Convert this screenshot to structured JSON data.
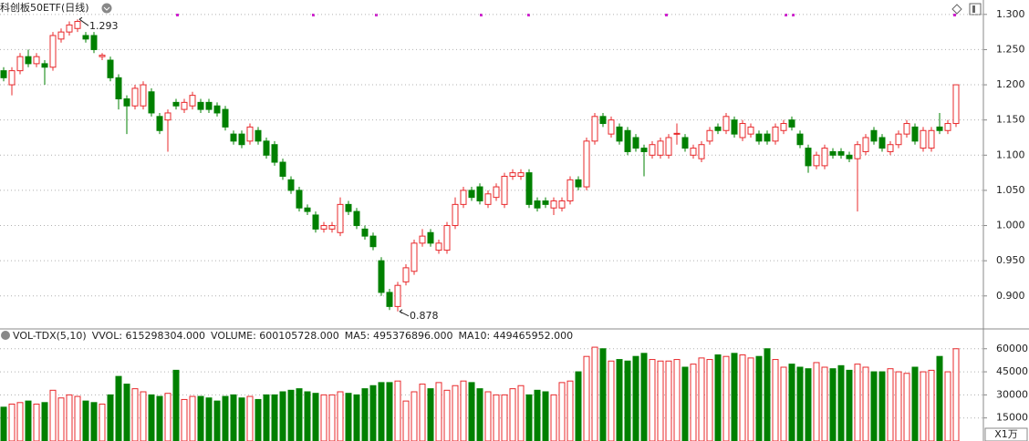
{
  "chart_data": [
    {
      "type": "candlestick",
      "title": "科创板50ETF(日线)",
      "open": [
        1.22,
        1.2,
        1.22,
        1.24,
        1.23,
        1.23,
        1.225,
        1.265,
        1.275,
        1.28,
        1.27,
        1.27,
        1.24,
        1.235,
        1.21,
        1.18,
        1.17,
        1.17,
        1.19,
        1.155,
        1.15,
        1.175,
        1.165,
        1.17,
        1.175,
        1.175,
        1.17,
        1.165,
        1.13,
        1.13,
        1.12,
        1.135,
        1.12,
        1.115,
        1.09,
        1.065,
        1.05,
        1.025,
        1.015,
        0.995,
        0.995,
        0.99,
        1.03,
        1.02,
        0.995,
        0.985,
        0.95,
        0.905,
        0.885,
        0.92,
        0.935,
        0.975,
        0.99,
        0.965,
        0.965,
        1.0,
        1.03,
        1.05,
        1.055,
        1.03,
        1.04,
        1.03,
        1.07,
        1.07,
        1.075,
        1.035,
        1.035,
        1.025,
        1.025,
        1.035,
        1.065,
        1.055,
        1.12,
        1.155,
        1.13,
        1.14,
        1.135,
        1.125,
        1.11,
        1.1,
        1.1,
        1.1,
        1.13,
        1.125,
        1.1,
        1.095,
        1.12,
        1.14,
        1.135,
        1.15,
        1.125,
        1.13,
        1.13,
        1.13,
        1.12,
        1.135,
        1.15,
        1.13,
        1.11,
        1.085,
        1.085,
        1.105,
        1.105,
        1.1,
        1.095,
        1.105,
        1.135,
        1.125,
        1.105,
        1.115,
        1.13,
        1.14,
        1.11,
        1.11,
        1.14,
        1.135,
        1.145
      ],
      "high": [
        1.225,
        1.225,
        1.245,
        1.25,
        1.245,
        1.235,
        1.275,
        1.28,
        1.29,
        1.293,
        1.275,
        1.275,
        1.245,
        1.24,
        1.215,
        1.185,
        1.2,
        1.205,
        1.195,
        1.16,
        1.165,
        1.18,
        1.18,
        1.19,
        1.18,
        1.18,
        1.175,
        1.17,
        1.135,
        1.135,
        1.145,
        1.14,
        1.125,
        1.12,
        1.095,
        1.07,
        1.055,
        1.03,
        1.02,
        1.005,
        1.005,
        1.04,
        1.035,
        1.025,
        1.0,
        0.99,
        0.955,
        0.91,
        0.92,
        0.945,
        0.98,
        0.995,
        0.995,
        0.98,
        1.005,
        1.04,
        1.055,
        1.055,
        1.06,
        1.05,
        1.06,
        1.075,
        1.08,
        1.08,
        1.08,
        1.04,
        1.04,
        1.04,
        1.04,
        1.07,
        1.07,
        1.125,
        1.16,
        1.16,
        1.155,
        1.145,
        1.14,
        1.13,
        1.115,
        1.12,
        1.125,
        1.13,
        1.145,
        1.13,
        1.115,
        1.12,
        1.14,
        1.145,
        1.16,
        1.155,
        1.15,
        1.145,
        1.135,
        1.135,
        1.145,
        1.15,
        1.155,
        1.135,
        1.115,
        1.105,
        1.115,
        1.11,
        1.11,
        1.105,
        1.12,
        1.13,
        1.14,
        1.13,
        1.12,
        1.135,
        1.15,
        1.145,
        1.14,
        1.14,
        1.16,
        1.15,
        1.2
      ],
      "low": [
        1.205,
        1.185,
        1.215,
        1.225,
        1.225,
        1.2,
        1.22,
        1.26,
        1.27,
        1.275,
        1.26,
        1.245,
        1.235,
        1.205,
        1.165,
        1.13,
        1.165,
        1.165,
        1.155,
        1.13,
        1.105,
        1.165,
        1.16,
        1.165,
        1.16,
        1.16,
        1.155,
        1.135,
        1.115,
        1.11,
        1.115,
        1.115,
        1.095,
        1.085,
        1.065,
        1.045,
        1.02,
        1.015,
        0.99,
        0.99,
        0.99,
        0.985,
        1.015,
        0.995,
        0.98,
        0.965,
        0.9,
        0.88,
        0.878,
        0.915,
        0.93,
        0.97,
        0.97,
        0.96,
        0.96,
        0.995,
        1.025,
        1.035,
        1.03,
        1.025,
        1.035,
        1.025,
        1.065,
        1.065,
        1.025,
        1.02,
        1.025,
        1.015,
        1.02,
        1.03,
        1.05,
        1.05,
        1.115,
        1.14,
        1.125,
        1.115,
        1.1,
        1.105,
        1.07,
        1.095,
        1.095,
        1.095,
        1.115,
        1.105,
        1.095,
        1.09,
        1.115,
        1.13,
        1.13,
        1.125,
        1.12,
        1.125,
        1.115,
        1.115,
        1.115,
        1.13,
        1.135,
        1.11,
        1.075,
        1.08,
        1.08,
        1.095,
        1.095,
        1.09,
        1.02,
        1.1,
        1.115,
        1.105,
        1.1,
        1.11,
        1.125,
        1.115,
        1.105,
        1.105,
        1.13,
        1.13,
        1.14
      ],
      "close": [
        1.21,
        1.22,
        1.24,
        1.23,
        1.24,
        1.225,
        1.27,
        1.275,
        1.285,
        1.29,
        1.265,
        1.25,
        1.242,
        1.21,
        1.18,
        1.17,
        1.195,
        1.2,
        1.16,
        1.135,
        1.16,
        1.17,
        1.175,
        1.185,
        1.165,
        1.165,
        1.16,
        1.14,
        1.12,
        1.115,
        1.14,
        1.12,
        1.1,
        1.09,
        1.07,
        1.05,
        1.025,
        1.02,
        0.995,
        1.0,
        1.0,
        1.03,
        1.02,
        1.0,
        0.985,
        0.97,
        0.905,
        0.885,
        0.915,
        0.94,
        0.975,
        0.985,
        0.975,
        0.975,
        1.0,
        1.03,
        1.05,
        1.04,
        1.035,
        1.045,
        1.055,
        1.07,
        1.075,
        1.075,
        1.03,
        1.025,
        1.03,
        1.035,
        1.035,
        1.065,
        1.055,
        1.12,
        1.155,
        1.145,
        1.15,
        1.12,
        1.105,
        1.11,
        1.105,
        1.115,
        1.12,
        1.125,
        1.131,
        1.11,
        1.11,
        1.115,
        1.135,
        1.135,
        1.155,
        1.13,
        1.145,
        1.14,
        1.12,
        1.12,
        1.14,
        1.145,
        1.14,
        1.115,
        1.085,
        1.1,
        1.11,
        1.1,
        1.1,
        1.095,
        1.115,
        1.125,
        1.12,
        1.11,
        1.115,
        1.13,
        1.145,
        1.12,
        1.135,
        1.135,
        1.135,
        1.145,
        1.2
      ],
      "up_color": "#e8282b",
      "down_color": "#008000",
      "ylim": [
        0.857,
        1.314
      ],
      "yticks": [
        {
          "value": 0.9,
          "label": "0.900"
        },
        {
          "value": 0.95,
          "label": "0.950"
        },
        {
          "value": 1.0,
          "label": "1.000"
        },
        {
          "value": 1.05,
          "label": "1.050"
        },
        {
          "value": 1.1,
          "label": "1.100"
        },
        {
          "value": 1.15,
          "label": "1.150"
        },
        {
          "value": 1.2,
          "label": "1.200"
        },
        {
          "value": 1.25,
          "label": "1.250"
        },
        {
          "value": 1.3,
          "label": "1.300"
        }
      ],
      "grid": true,
      "annotations": [
        {
          "text": "1.293",
          "index": 9
        },
        {
          "text": "0.878",
          "index": 48
        }
      ]
    },
    {
      "type": "bar",
      "title": "VOL-TDX(5,10)",
      "legend": [
        {
          "text": "VVOL: 615298304.000",
          "color": "#333333"
        },
        {
          "text": "VOLUME: 600105728.000",
          "color": "#c020c0"
        },
        {
          "text": "MA5: 495376896.000",
          "color": "#c020c0"
        },
        {
          "text": "MA10: 449465952.000",
          "color": "#777777"
        }
      ],
      "values": [
        22000,
        24000,
        25000,
        26000,
        24000,
        25000,
        33000,
        28000,
        30000,
        29000,
        26000,
        25000,
        24000,
        30000,
        42000,
        37000,
        34000,
        32000,
        30000,
        29000,
        31000,
        46000,
        27000,
        29000,
        29000,
        28000,
        26000,
        29000,
        30000,
        28000,
        29000,
        27000,
        30000,
        30000,
        32000,
        33000,
        34000,
        32000,
        31000,
        30000,
        30000,
        32000,
        31000,
        30000,
        34000,
        36000,
        38000,
        38000,
        39000,
        26000,
        32000,
        37000,
        34000,
        38000,
        33000,
        36000,
        39000,
        38000,
        34000,
        32000,
        30000,
        30000,
        34000,
        36000,
        30000,
        33000,
        32000,
        30000,
        38000,
        39000,
        45000,
        55000,
        61000,
        60000,
        52000,
        53000,
        52000,
        55000,
        57000,
        53000,
        52000,
        52000,
        53000,
        48000,
        50000,
        54000,
        53000,
        56000,
        55000,
        57000,
        56000,
        54000,
        55000,
        60000,
        53000,
        48000,
        50000,
        48000,
        47000,
        51000,
        48000,
        47000,
        49000,
        46000,
        50000,
        48000,
        45000,
        45000,
        47000,
        45000,
        44000,
        48000,
        45000,
        46000,
        55000,
        45000,
        60000
      ],
      "ylim": [
        0,
        64000
      ],
      "yticks": [
        15000,
        30000,
        45000,
        60000
      ],
      "grid": true,
      "unit_label": "X1万"
    }
  ]
}
